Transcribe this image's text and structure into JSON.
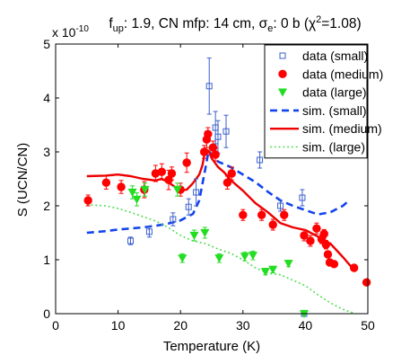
{
  "chart_data": {
    "type": "scatter",
    "title": "f_up: 1.9, CN mfp: 14 cm, σ_e: 0 b (χ²=1.08)",
    "title_parts": {
      "f_label": "f",
      "f_sub": "up",
      "mid1": ": 1.9, CN mfp: 14 cm, σ",
      "e_sub": "e",
      "mid2": ": 0 b (χ",
      "chi_sup": "2",
      "end": "=1.08)"
    },
    "xlabel": "Temperature (K)",
    "ylabel": "S (UCN/CN)",
    "y_multiplier": "x 10",
    "y_multiplier_exp": "-10",
    "xlim": [
      0,
      50
    ],
    "ylim": [
      0,
      5
    ],
    "xticks": [
      0,
      10,
      20,
      30,
      40,
      50
    ],
    "yticks": [
      0,
      1,
      2,
      3,
      4,
      5
    ],
    "grid": false,
    "legend_position": "top-right",
    "series": [
      {
        "name": "data (small)",
        "kind": "points",
        "marker": "square",
        "color": "#3a5fcd",
        "points": [
          {
            "x": 12.0,
            "y": 1.35,
            "err": 0.07
          },
          {
            "x": 15.0,
            "y": 1.52,
            "err": 0.1
          },
          {
            "x": 18.8,
            "y": 1.75,
            "err": 0.12
          },
          {
            "x": 21.3,
            "y": 1.98,
            "err": 0.15
          },
          {
            "x": 22.5,
            "y": 2.25,
            "err": 0.25
          },
          {
            "x": 24.6,
            "y": 4.22,
            "err": 0.52
          },
          {
            "x": 25.6,
            "y": 3.45,
            "err": 0.3
          },
          {
            "x": 26.0,
            "y": 3.28,
            "err": 0.3
          },
          {
            "x": 27.3,
            "y": 3.38,
            "err": 0.3
          },
          {
            "x": 32.7,
            "y": 2.85,
            "err": 0.15
          },
          {
            "x": 36.0,
            "y": 2.0,
            "err": 0.1
          },
          {
            "x": 39.5,
            "y": 2.15,
            "err": 0.15
          },
          {
            "x": 39.8,
            "y": 0.0,
            "err": 0.0
          }
        ]
      },
      {
        "name": "data (medium)",
        "kind": "points",
        "marker": "circle",
        "color": "#ff0000",
        "points": [
          {
            "x": 5.2,
            "y": 2.1,
            "err": 0.1
          },
          {
            "x": 8.1,
            "y": 2.43,
            "err": 0.12
          },
          {
            "x": 10.5,
            "y": 2.35,
            "err": 0.12
          },
          {
            "x": 14.2,
            "y": 2.3,
            "err": 0.15
          },
          {
            "x": 16.0,
            "y": 2.6,
            "err": 0.15
          },
          {
            "x": 17.0,
            "y": 2.63,
            "err": 0.15
          },
          {
            "x": 18.1,
            "y": 2.48,
            "err": 0.18
          },
          {
            "x": 18.6,
            "y": 2.6,
            "err": 0.12
          },
          {
            "x": 20.0,
            "y": 2.3,
            "err": 0.12
          },
          {
            "x": 21.0,
            "y": 2.8,
            "err": 0.18
          },
          {
            "x": 23.8,
            "y": 3.0,
            "err": 0.12
          },
          {
            "x": 24.2,
            "y": 3.23,
            "err": 0.15
          },
          {
            "x": 24.4,
            "y": 3.33,
            "err": 0.12
          },
          {
            "x": 25.2,
            "y": 3.08,
            "err": 0.12
          },
          {
            "x": 25.6,
            "y": 2.95,
            "err": 0.12
          },
          {
            "x": 27.5,
            "y": 2.43,
            "err": 0.12
          },
          {
            "x": 28.2,
            "y": 2.6,
            "err": 0.12
          },
          {
            "x": 30.0,
            "y": 1.83,
            "err": 0.1
          },
          {
            "x": 33.0,
            "y": 1.83,
            "err": 0.1
          },
          {
            "x": 34.8,
            "y": 1.65,
            "err": 0.1
          },
          {
            "x": 36.6,
            "y": 1.83,
            "err": 0.1
          },
          {
            "x": 39.8,
            "y": 1.45,
            "err": 0.1
          },
          {
            "x": 40.8,
            "y": 1.35,
            "err": 0.1
          },
          {
            "x": 41.8,
            "y": 1.58,
            "err": 0.1
          },
          {
            "x": 42.6,
            "y": 1.38,
            "err": 0.08
          },
          {
            "x": 43.0,
            "y": 1.48,
            "err": 0.08
          },
          {
            "x": 43.3,
            "y": 1.28,
            "err": 0.08
          },
          {
            "x": 43.6,
            "y": 1.1,
            "err": 0.06
          },
          {
            "x": 43.9,
            "y": 0.95,
            "err": 0.06
          },
          {
            "x": 44.6,
            "y": 0.92,
            "err": 0.05
          },
          {
            "x": 47.8,
            "y": 0.85,
            "err": 0.05
          },
          {
            "x": 49.8,
            "y": 0.58,
            "err": 0.04
          }
        ]
      },
      {
        "name": "data (large)",
        "kind": "points",
        "marker": "triangle-down",
        "color": "#22dd22",
        "points": [
          {
            "x": 12.3,
            "y": 2.25,
            "err": 0.12
          },
          {
            "x": 13.0,
            "y": 2.12,
            "err": 0.12
          },
          {
            "x": 14.3,
            "y": 2.3,
            "err": 0.12
          },
          {
            "x": 19.5,
            "y": 2.3,
            "err": 0.12
          },
          {
            "x": 20.3,
            "y": 1.03,
            "err": 0.08
          },
          {
            "x": 22.2,
            "y": 1.45,
            "err": 0.1
          },
          {
            "x": 23.9,
            "y": 1.5,
            "err": 0.1
          },
          {
            "x": 26.2,
            "y": 1.03,
            "err": 0.08
          },
          {
            "x": 30.3,
            "y": 1.06,
            "err": 0.08
          },
          {
            "x": 31.6,
            "y": 1.08,
            "err": 0.08
          },
          {
            "x": 33.6,
            "y": 0.78,
            "err": 0.06
          },
          {
            "x": 34.8,
            "y": 0.82,
            "err": 0.06
          },
          {
            "x": 37.3,
            "y": 0.93,
            "err": 0.06
          },
          {
            "x": 39.8,
            "y": 0.0,
            "err": 0.0
          }
        ]
      },
      {
        "name": "sim. (small)",
        "kind": "line",
        "dash": "8,5",
        "width": 2.6,
        "color": "#1144ee",
        "x": [
          5,
          8,
          10,
          12,
          14,
          16,
          18,
          20,
          22,
          23,
          24,
          24.5,
          25,
          26,
          28,
          30,
          32,
          34,
          36,
          38,
          40,
          42,
          44,
          46,
          47
        ],
        "y": [
          1.5,
          1.53,
          1.56,
          1.58,
          1.6,
          1.63,
          1.67,
          1.73,
          1.85,
          2.1,
          2.7,
          3.02,
          2.95,
          2.82,
          2.72,
          2.58,
          2.44,
          2.26,
          2.1,
          2.0,
          1.92,
          1.84,
          1.88,
          2.0,
          2.1
        ]
      },
      {
        "name": "sim. (medium)",
        "kind": "line",
        "dash": "",
        "width": 2.4,
        "color": "#ee0000",
        "x": [
          5,
          8,
          10,
          12,
          14,
          16,
          17,
          18,
          19,
          20,
          21,
          22,
          23,
          23.5,
          24,
          24.5,
          25,
          26,
          27,
          28,
          30,
          32,
          34,
          36,
          38,
          40,
          42,
          44,
          46,
          48
        ],
        "y": [
          2.55,
          2.56,
          2.58,
          2.55,
          2.5,
          2.47,
          2.5,
          2.44,
          2.36,
          2.28,
          2.3,
          2.42,
          2.58,
          2.75,
          3.05,
          3.02,
          2.88,
          2.72,
          2.62,
          2.48,
          2.28,
          2.05,
          1.88,
          1.68,
          1.6,
          1.55,
          1.43,
          1.3,
          1.05,
          0.78
        ]
      },
      {
        "name": "sim. (large)",
        "kind": "line",
        "dash": "1.8,3",
        "width": 1.6,
        "color": "#44dd44",
        "x": [
          5,
          8,
          10,
          12,
          14,
          16,
          18,
          20,
          22,
          24,
          26,
          28,
          30,
          32,
          34,
          36,
          38,
          40,
          42,
          44,
          46,
          48
        ],
        "y": [
          2.02,
          2.0,
          1.95,
          1.88,
          1.8,
          1.72,
          1.6,
          1.45,
          1.35,
          1.3,
          1.2,
          1.12,
          1.0,
          0.85,
          0.75,
          0.72,
          0.62,
          0.52,
          0.35,
          0.2,
          0.08,
          0.0
        ]
      }
    ]
  }
}
